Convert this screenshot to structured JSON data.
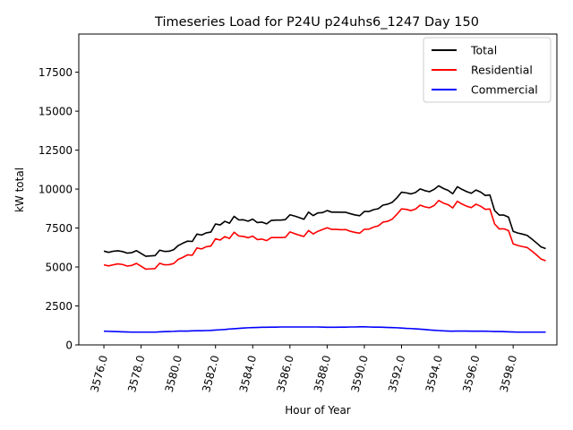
{
  "chart_data": {
    "type": "line",
    "title": "Timeseries Load for P24U p24uhs6_1247  Day 150",
    "xlabel": "Hour of Year",
    "ylabel": "kW total",
    "xlim": [
      3574.65,
      3600.35
    ],
    "ylim": [
      0,
      19950
    ],
    "x_ticks": [
      3576.0,
      3578.0,
      3580.0,
      3582.0,
      3584.0,
      3586.0,
      3588.0,
      3590.0,
      3592.0,
      3594.0,
      3596.0,
      3598.0
    ],
    "x_tick_labels": [
      "3576.0",
      "3578.0",
      "3580.0",
      "3582.0",
      "3584.0",
      "3586.0",
      "3588.0",
      "3590.0",
      "3592.0",
      "3594.0",
      "3596.0",
      "3598.0"
    ],
    "y_ticks": [
      0,
      2500,
      5000,
      7500,
      10000,
      12500,
      15000,
      17500
    ],
    "y_tick_labels": [
      "0",
      "2500",
      "5000",
      "7500",
      "10000",
      "12500",
      "15000",
      "17500"
    ],
    "grid": false,
    "legend_position": "top-right",
    "x": [
      3576.0,
      3576.25,
      3576.5,
      3576.75,
      3577.0,
      3577.25,
      3577.5,
      3577.75,
      3578.0,
      3578.25,
      3578.5,
      3578.75,
      3579.0,
      3579.25,
      3579.5,
      3579.75,
      3580.0,
      3580.25,
      3580.5,
      3580.75,
      3581.0,
      3581.25,
      3581.5,
      3581.75,
      3582.0,
      3582.25,
      3582.5,
      3582.75,
      3583.0,
      3583.25,
      3583.5,
      3583.75,
      3584.0,
      3584.25,
      3584.5,
      3584.75,
      3585.0,
      3585.25,
      3585.5,
      3585.75,
      3586.0,
      3586.25,
      3586.5,
      3586.75,
      3587.0,
      3587.25,
      3587.5,
      3587.75,
      3588.0,
      3588.25,
      3588.5,
      3588.75,
      3589.0,
      3589.25,
      3589.5,
      3589.75,
      3590.0,
      3590.25,
      3590.5,
      3590.75,
      3591.0,
      3591.25,
      3591.5,
      3591.75,
      3592.0,
      3592.25,
      3592.5,
      3592.75,
      3593.0,
      3593.25,
      3593.5,
      3593.75,
      3594.0,
      3594.25,
      3594.5,
      3594.75,
      3595.0,
      3595.25,
      3595.5,
      3595.75,
      3596.0,
      3596.25,
      3596.5,
      3596.75,
      3597.0,
      3597.25,
      3597.5,
      3597.75,
      3598.0,
      3598.25,
      3598.5,
      3598.75,
      3599.0,
      3599.25,
      3599.5,
      3599.75
    ],
    "series": [
      {
        "name": "Total",
        "color": "#000000",
        "values": [
          6020,
          5940,
          6010,
          6040,
          5990,
          5890,
          5920,
          6050,
          5870,
          5690,
          5710,
          5730,
          6080,
          6000,
          6010,
          6110,
          6380,
          6530,
          6660,
          6640,
          7110,
          7050,
          7190,
          7240,
          7760,
          7700,
          7930,
          7810,
          8250,
          8020,
          8030,
          7940,
          8070,
          7850,
          7880,
          7770,
          7990,
          8010,
          8010,
          8040,
          8350,
          8270,
          8170,
          8060,
          8520,
          8300,
          8470,
          8490,
          8620,
          8520,
          8520,
          8510,
          8510,
          8420,
          8340,
          8290,
          8560,
          8560,
          8680,
          8740,
          8970,
          9030,
          9150,
          9440,
          9800,
          9760,
          9690,
          9780,
          10010,
          9900,
          9830,
          9980,
          10210,
          10040,
          9920,
          9700,
          10150,
          9980,
          9840,
          9730,
          9940,
          9810,
          9590,
          9620,
          8630,
          8330,
          8330,
          8200,
          7290,
          7180,
          7110,
          7030,
          6800,
          6550,
          6290,
          6180
        ]
      },
      {
        "name": "Residential",
        "color": "#ff0000",
        "values": [
          5140,
          5070,
          5140,
          5200,
          5160,
          5060,
          5100,
          5230,
          5050,
          4860,
          4880,
          4900,
          5240,
          5140,
          5150,
          5220,
          5490,
          5620,
          5780,
          5750,
          6220,
          6160,
          6300,
          6340,
          6810,
          6730,
          6950,
          6830,
          7230,
          6990,
          6960,
          6880,
          6980,
          6760,
          6790,
          6690,
          6890,
          6890,
          6890,
          6900,
          7250,
          7140,
          7040,
          6960,
          7340,
          7120,
          7290,
          7400,
          7520,
          7410,
          7410,
          7390,
          7400,
          7290,
          7220,
          7170,
          7420,
          7430,
          7560,
          7640,
          7880,
          7930,
          8070,
          8380,
          8730,
          8700,
          8620,
          8720,
          8970,
          8860,
          8800,
          8940,
          9270,
          9100,
          9000,
          8790,
          9220,
          9040,
          8900,
          8810,
          9030,
          8900,
          8700,
          8720,
          7770,
          7440,
          7450,
          7340,
          6480,
          6380,
          6310,
          6250,
          6030,
          5780,
          5510,
          5400
        ]
      },
      {
        "name": "Commercial",
        "color": "#0000ff",
        "values": [
          880,
          870,
          860,
          850,
          840,
          830,
          820,
          820,
          820,
          820,
          820,
          820,
          840,
          850,
          860,
          870,
          890,
          890,
          890,
          900,
          910,
          910,
          920,
          930,
          950,
          970,
          990,
          1020,
          1040,
          1060,
          1080,
          1100,
          1110,
          1120,
          1130,
          1130,
          1140,
          1140,
          1150,
          1150,
          1150,
          1150,
          1150,
          1150,
          1150,
          1150,
          1150,
          1140,
          1130,
          1130,
          1130,
          1140,
          1140,
          1150,
          1150,
          1160,
          1160,
          1150,
          1140,
          1140,
          1130,
          1120,
          1110,
          1100,
          1080,
          1060,
          1050,
          1030,
          1010,
          990,
          960,
          940,
          920,
          900,
          890,
          880,
          890,
          890,
          890,
          880,
          880,
          880,
          880,
          870,
          860,
          860,
          850,
          840,
          830,
          820,
          820,
          820,
          820,
          820,
          820,
          820
        ]
      }
    ]
  }
}
